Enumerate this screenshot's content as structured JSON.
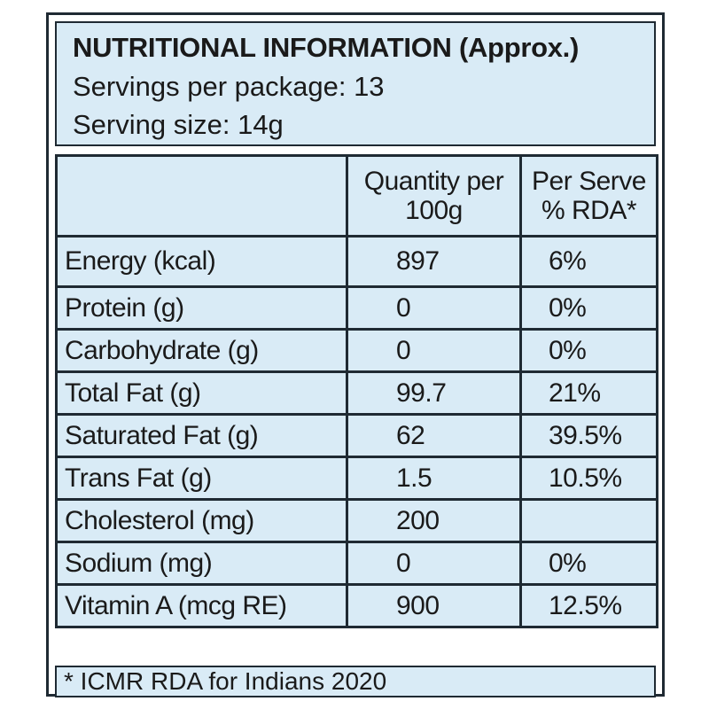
{
  "header": {
    "title": "NUTRITIONAL INFORMATION (Approx.)",
    "servings_per_package": "Servings per package: 13",
    "serving_size": "Serving size: 14g"
  },
  "table": {
    "columns": {
      "qty_line1": "Quantity per",
      "qty_line2": "100g",
      "rda_line1": "Per Serve",
      "rda_line2": "% RDA*"
    },
    "rows": [
      {
        "name": "Energy (kcal)",
        "qty": "897",
        "rda": "6%"
      },
      {
        "name": "Protein (g)",
        "qty": "0",
        "rda": "0%"
      },
      {
        "name": "Carbohydrate (g)",
        "qty": "0",
        "rda": "0%"
      },
      {
        "name": "Total Fat (g)",
        "qty": "99.7",
        "rda": "21%"
      },
      {
        "name": "Saturated Fat (g)",
        "qty": "62",
        "rda": "39.5%"
      },
      {
        "name": "Trans Fat (g)",
        "qty": "1.5",
        "rda": "10.5%"
      },
      {
        "name": "Cholesterol (mg)",
        "qty": "200",
        "rda": ""
      },
      {
        "name": "Sodium (mg)",
        "qty": "0",
        "rda": "0%"
      },
      {
        "name": "Vitamin A (mcg RE)",
        "qty": "900",
        "rda": "12.5%"
      }
    ]
  },
  "footer": {
    "note": "* ICMR RDA for Indians 2020"
  },
  "colors": {
    "cell_background": "#d9ebf6",
    "border": "#1f2a33"
  }
}
